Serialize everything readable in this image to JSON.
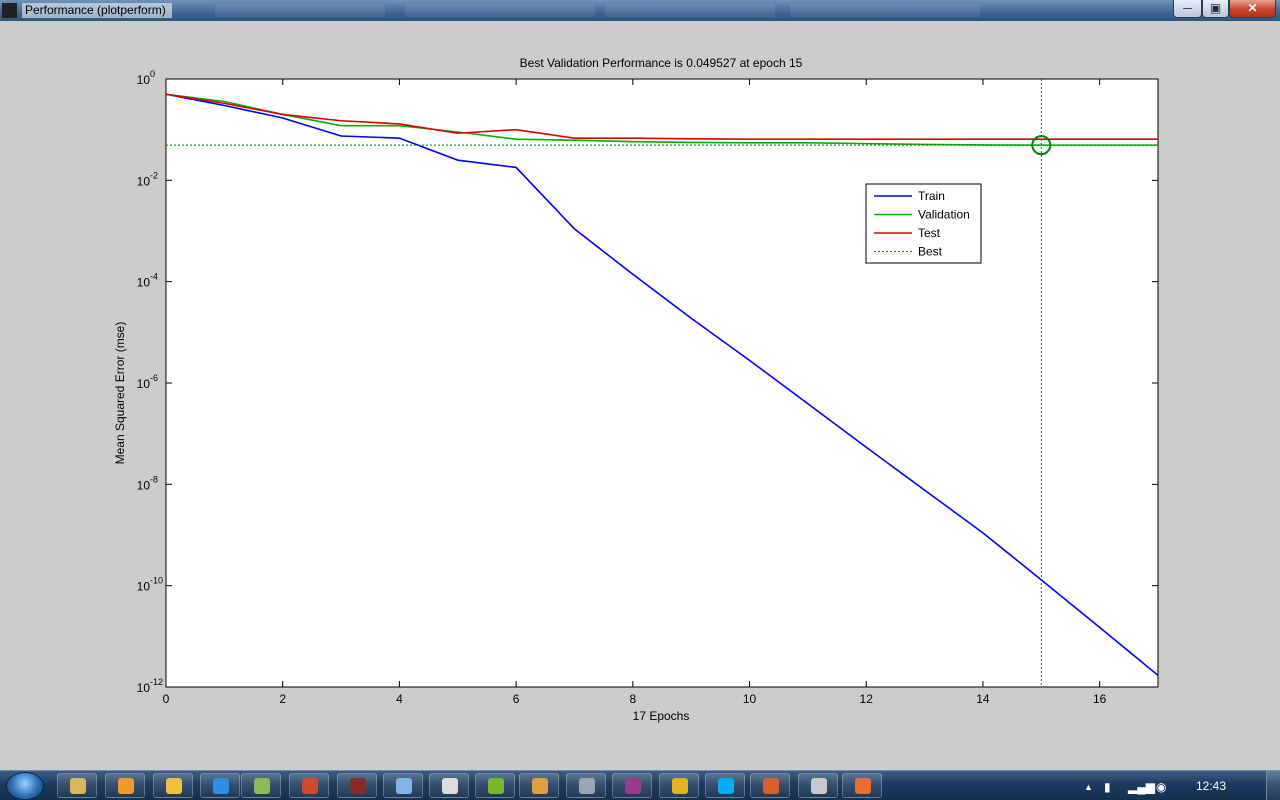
{
  "window": {
    "title": "Performance (plotperform)",
    "minimize_glyph": "─",
    "maximize_glyph": "▣",
    "close_glyph": "✕"
  },
  "chart_data": {
    "type": "line",
    "title": "Best Validation Performance is 0.049527 at epoch 15",
    "xlabel": "17 Epochs",
    "ylabel": "Mean Squared Error  (mse)",
    "xlim": [
      0,
      17
    ],
    "ylim": [
      1e-12,
      1
    ],
    "yscale": "log",
    "grid": false,
    "legend_position": "top-right",
    "xticks": [
      0,
      2,
      4,
      6,
      8,
      10,
      12,
      14,
      16
    ],
    "yticks": [
      {
        "mantissa": "10",
        "exp": "0",
        "value": 1
      },
      {
        "mantissa": "10",
        "exp": "-2",
        "value": 0.01
      },
      {
        "mantissa": "10",
        "exp": "-4",
        "value": 0.0001
      },
      {
        "mantissa": "10",
        "exp": "-6",
        "value": 1e-06
      },
      {
        "mantissa": "10",
        "exp": "-8",
        "value": 1e-08
      },
      {
        "mantissa": "10",
        "exp": "-10",
        "value": 1e-10
      },
      {
        "mantissa": "10",
        "exp": "-12",
        "value": 1e-12
      }
    ],
    "x": [
      0,
      1,
      2,
      3,
      4,
      5,
      6,
      7,
      8,
      9,
      10,
      11,
      12,
      13,
      14,
      15,
      16,
      17
    ],
    "series": [
      {
        "name": "Train",
        "color": "#0000ff",
        "values": [
          0.5,
          0.3,
          0.17,
          0.075,
          0.068,
          0.025,
          0.018,
          0.0011,
          0.00014,
          1.9e-05,
          2.8e-06,
          3.9e-07,
          5.4e-08,
          7.7e-09,
          1.1e-09,
          1.3e-10,
          1.5e-11,
          1.7e-12
        ]
      },
      {
        "name": "Validation",
        "color": "#00b000",
        "values": [
          0.5,
          0.36,
          0.2,
          0.12,
          0.12,
          0.09,
          0.065,
          0.062,
          0.058,
          0.056,
          0.055,
          0.055,
          0.053,
          0.051,
          0.05,
          0.049527,
          0.049527,
          0.049527
        ]
      },
      {
        "name": "Test",
        "color": "#e00000",
        "values": [
          0.5,
          0.33,
          0.2,
          0.15,
          0.13,
          0.085,
          0.1,
          0.068,
          0.068,
          0.066,
          0.065,
          0.065,
          0.065,
          0.065,
          0.065,
          0.065,
          0.065,
          0.065
        ]
      }
    ],
    "best": {
      "name": "Best",
      "epoch": 15,
      "value": 0.049527,
      "color": "#008000",
      "style": "dotted"
    }
  },
  "taskbar": {
    "clock": "12:43",
    "tray_up_arrow": "▲",
    "buttons": [
      {
        "name": "explorer-icon",
        "color": "#d9b65a"
      },
      {
        "name": "media-player-icon",
        "color": "#f19a2a"
      },
      {
        "name": "folder-icon",
        "color": "#f2c040"
      },
      {
        "name": "ie-icon",
        "color": "#2e8ee0"
      },
      {
        "name": "photo-viewer-icon",
        "color": "#8bbb52"
      },
      {
        "name": "paint-icon",
        "color": "#d24a2e"
      },
      {
        "name": "book-icon",
        "color": "#8a2a2a"
      },
      {
        "name": "notepad-icon",
        "color": "#7fb6e8"
      },
      {
        "name": "wordpad-icon",
        "color": "#dcdcdc"
      },
      {
        "name": "spotify-icon",
        "color": "#76b82a"
      },
      {
        "name": "paint-palette-icon",
        "color": "#e0a040"
      },
      {
        "name": "calculator-icon",
        "color": "#9aa7b3"
      },
      {
        "name": "winrar-icon",
        "color": "#9b3a8f"
      },
      {
        "name": "chrome-icon",
        "color": "#e2b422"
      },
      {
        "name": "skype-icon",
        "color": "#00aff0"
      },
      {
        "name": "matlab-icon",
        "color": "#d8602a"
      },
      {
        "name": "files-icon",
        "color": "#c9c9c9"
      },
      {
        "name": "firefox-icon",
        "color": "#e8702a"
      }
    ]
  }
}
